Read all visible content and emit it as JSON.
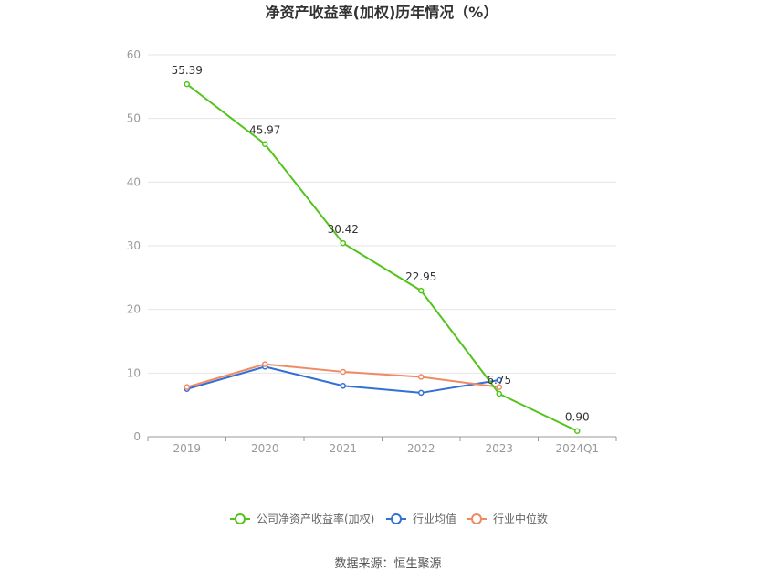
{
  "chart_data": {
    "type": "line",
    "title": "净资产收益率(加权)历年情况（%）",
    "categories": [
      "2019",
      "2020",
      "2021",
      "2022",
      "2023",
      "2024Q1"
    ],
    "ylim": [
      0,
      60
    ],
    "yticks": [
      0,
      10,
      20,
      30,
      40,
      50,
      60
    ],
    "grid": true,
    "legend_position": "bottom",
    "series": [
      {
        "name": "公司净资产收益率(加权)",
        "color": "#52c41a",
        "values": [
          55.39,
          45.97,
          30.42,
          22.95,
          6.75,
          0.9
        ],
        "labels": [
          "55.39",
          "45.97",
          "30.42",
          "22.95",
          "6.75",
          "0.90"
        ]
      },
      {
        "name": "行业均值",
        "color": "#3370d6",
        "values": [
          7.5,
          11.0,
          8.0,
          6.9,
          8.9,
          null
        ]
      },
      {
        "name": "行业中位数",
        "color": "#f08a62",
        "values": [
          7.8,
          11.4,
          10.2,
          9.4,
          7.8,
          null
        ]
      }
    ]
  },
  "source": "数据来源：恒生聚源"
}
